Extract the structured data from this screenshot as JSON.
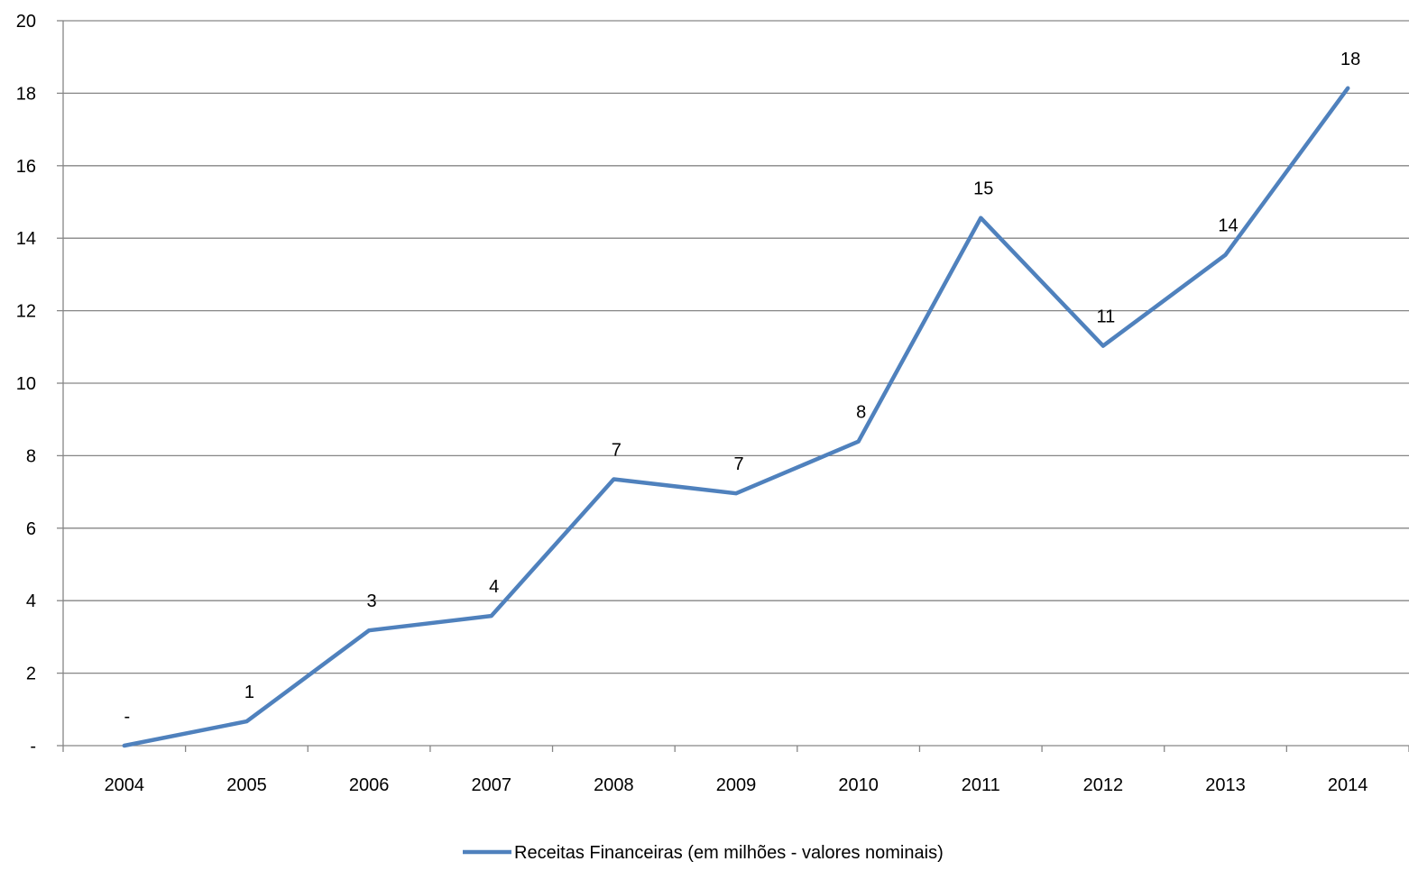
{
  "chart_data": {
    "type": "line",
    "categories": [
      "2004",
      "2005",
      "2006",
      "2007",
      "2008",
      "2009",
      "2010",
      "2011",
      "2012",
      "2013",
      "2014"
    ],
    "series": [
      {
        "name": "Receitas Financeiras (em milhões - valores nominais)",
        "values": [
          0,
          0.67,
          3.18,
          3.58,
          7.35,
          6.96,
          8.39,
          14.56,
          11.03,
          13.54,
          18.14
        ],
        "data_labels": [
          "-",
          "1",
          "3",
          "4",
          "7",
          "7",
          "8",
          "15",
          "11",
          "14",
          "18"
        ],
        "color": "#4F81BD"
      }
    ],
    "y_ticks": [
      0,
      2,
      4,
      6,
      8,
      10,
      12,
      14,
      16,
      18,
      20
    ],
    "y_tick_labels": [
      "-",
      "2",
      "4",
      "6",
      "8",
      "10",
      "12",
      "14",
      "16",
      "18",
      "20"
    ],
    "ylim": [
      0,
      20
    ],
    "grid": true,
    "legend_position": "bottom",
    "title": "",
    "xlabel": "",
    "ylabel": ""
  }
}
